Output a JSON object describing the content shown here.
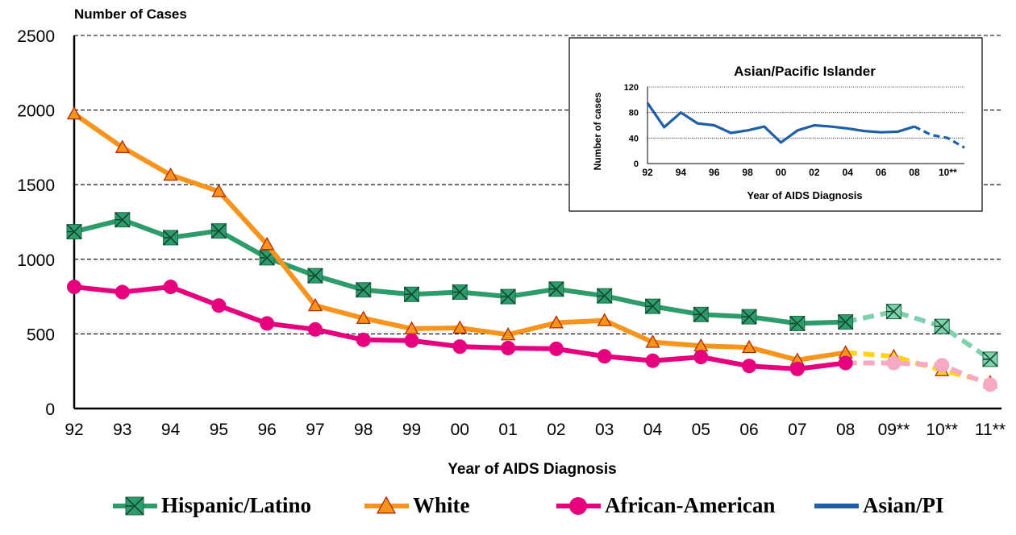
{
  "chart_data": {
    "type": "line",
    "ylabel": "Number of  Cases",
    "xlabel": "Year of AIDS Diagnosis",
    "ylim": [
      0,
      2500
    ],
    "yticks": [
      "0",
      "500",
      "1000",
      "1500",
      "2000",
      "2500"
    ],
    "categories": [
      "92",
      "93",
      "94",
      "95",
      "96",
      "97",
      "98",
      "99",
      "00",
      "01",
      "02",
      "03",
      "04",
      "05",
      "06",
      "07",
      "08",
      "09**",
      "10**",
      "11**"
    ],
    "grid": "horizontal dashed",
    "legend_position": "bottom",
    "projected_from": "08",
    "series": [
      {
        "name": "Hispanic/Latino",
        "color": "#2e9b6a",
        "projected_color": "#7fd1ad",
        "marker": "square-x",
        "values": [
          1185,
          1265,
          1145,
          1190,
          1010,
          890,
          795,
          765,
          780,
          750,
          800,
          755,
          685,
          630,
          615,
          570,
          580,
          650,
          550,
          330
        ]
      },
      {
        "name": "White",
        "color": "#f7941d",
        "projected_color": "#ffd21e",
        "marker": "triangle",
        "values": [
          1975,
          1750,
          1565,
          1455,
          1100,
          690,
          605,
          535,
          540,
          495,
          575,
          590,
          445,
          420,
          410,
          325,
          375,
          350,
          255,
          175
        ]
      },
      {
        "name": "African-American",
        "color": "#e6007e",
        "projected_color": "#f7a8c4",
        "marker": "circle",
        "values": [
          815,
          780,
          815,
          690,
          570,
          530,
          460,
          455,
          415,
          405,
          400,
          350,
          320,
          345,
          285,
          265,
          305,
          305,
          290,
          160
        ]
      }
    ],
    "inset": {
      "title": "Asian/Pacific Islander",
      "ylabel": "Number of cases",
      "xlabel": "Year of AIDS Diagnosis",
      "ylim": [
        0,
        120
      ],
      "yticks": [
        "0",
        "40",
        "80",
        "120"
      ],
      "xticks": [
        "92",
        "94",
        "96",
        "98",
        "00",
        "02",
        "04",
        "06",
        "08",
        "10**"
      ],
      "series": {
        "name": "Asian/PI",
        "color": "#1f5fa8",
        "x": [
          "92",
          "93",
          "94",
          "95",
          "96",
          "97",
          "98",
          "99",
          "00",
          "01",
          "02",
          "03",
          "04",
          "05",
          "06",
          "07",
          "08",
          "09",
          "10",
          "11"
        ],
        "values": [
          95,
          57,
          80,
          63,
          60,
          48,
          52,
          58,
          33,
          52,
          60,
          58,
          55,
          51,
          49,
          50,
          58,
          45,
          40,
          25
        ]
      }
    },
    "legend": [
      {
        "label": "Hispanic/Latino",
        "color": "#2e9b6a",
        "marker": "square-x"
      },
      {
        "label": "White",
        "color": "#f7941d",
        "marker": "triangle"
      },
      {
        "label": "African-American",
        "color": "#e6007e",
        "marker": "circle"
      },
      {
        "label": "Asian/PI",
        "color": "#1f5fa8",
        "marker": "none"
      }
    ]
  }
}
